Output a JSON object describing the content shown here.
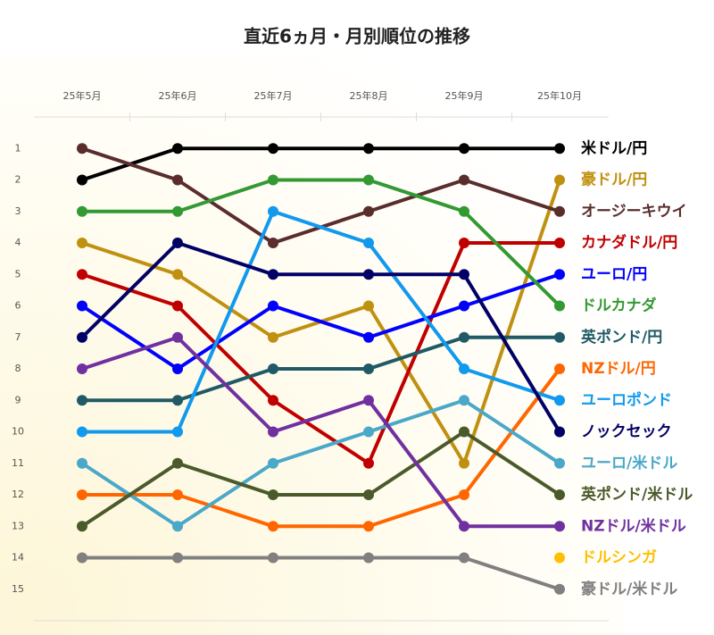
{
  "chart_data": {
    "type": "bump",
    "title": "直近6ヵ月・月別順位の推移",
    "categories": [
      "25年5月",
      "25年6月",
      "25年7月",
      "25年8月",
      "25年9月",
      "25年10月"
    ],
    "ylim": [
      0,
      16
    ],
    "y_inverted": true,
    "yticks": [
      1,
      2,
      3,
      4,
      5,
      6,
      7,
      8,
      9,
      10,
      11,
      12,
      13,
      14,
      15
    ],
    "series": [
      {
        "name": "米ドル/円",
        "color": "#000000",
        "values": [
          2,
          1,
          1,
          1,
          1,
          1
        ]
      },
      {
        "name": "豪ドル/円",
        "color": "#c09010",
        "values": [
          4,
          5,
          7,
          6,
          11,
          2
        ]
      },
      {
        "name": "オージーキウイ",
        "color": "#5a2d2d",
        "values": [
          1,
          2,
          4,
          3,
          2,
          3
        ]
      },
      {
        "name": "カナダドル/円",
        "color": "#c00000",
        "values": [
          5,
          6,
          9,
          11,
          4,
          4
        ]
      },
      {
        "name": "ユーロ/円",
        "color": "#0000ff",
        "values": [
          6,
          8,
          6,
          7,
          6,
          5
        ]
      },
      {
        "name": "ドルカナダ",
        "color": "#339933",
        "values": [
          3,
          3,
          2,
          2,
          3,
          6
        ]
      },
      {
        "name": "英ポンド/円",
        "color": "#1f5a66",
        "values": [
          9,
          9,
          8,
          8,
          7,
          7
        ]
      },
      {
        "name": "NZドル/円",
        "color": "#ff6600",
        "values": [
          12,
          12,
          13,
          13,
          12,
          8
        ]
      },
      {
        "name": "ユーロポンド",
        "color": "#1199ee",
        "values": [
          10,
          10,
          3,
          4,
          8,
          9
        ]
      },
      {
        "name": "ノックセック",
        "color": "#000066",
        "values": [
          7,
          4,
          5,
          5,
          5,
          10
        ]
      },
      {
        "name": "ユーロ/米ドル",
        "color": "#4aa8c8",
        "values": [
          11,
          13,
          11,
          10,
          9,
          11
        ]
      },
      {
        "name": "英ポンド/米ドル",
        "color": "#4a5a2a",
        "values": [
          13,
          11,
          12,
          12,
          10,
          12
        ]
      },
      {
        "name": "NZドル/米ドル",
        "color": "#7030a0",
        "values": [
          8,
          7,
          10,
          9,
          13,
          13
        ]
      },
      {
        "name": "ドルシンガ",
        "color": "#ffc000",
        "values": [
          null,
          null,
          null,
          null,
          null,
          14
        ]
      },
      {
        "name": "豪ドル/米ドル",
        "color": "#808080",
        "values": [
          14,
          14,
          14,
          14,
          14,
          15
        ]
      }
    ]
  }
}
